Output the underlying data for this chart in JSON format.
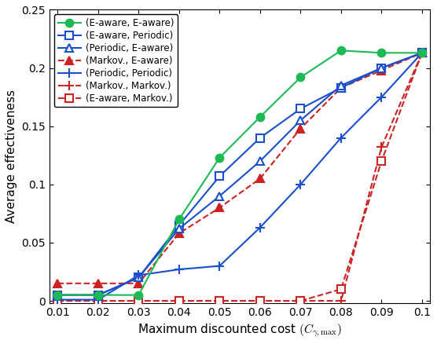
{
  "x": [
    0.01,
    0.02,
    0.03,
    0.04,
    0.05,
    0.06,
    0.07,
    0.08,
    0.09,
    0.1
  ],
  "series": [
    {
      "label": "(E-aware, E-aware)",
      "y": [
        0.005,
        0.005,
        0.005,
        0.07,
        0.123,
        0.158,
        0.192,
        0.215,
        0.213,
        0.213
      ],
      "color": "#1db954",
      "linestyle": "-",
      "marker": "o",
      "markerfacecolor": "#1db954",
      "markeredgecolor": "#1db954",
      "markersize": 7,
      "linewidth": 1.5,
      "zorder": 5
    },
    {
      "label": "(E-aware, Periodic)",
      "y": [
        0.005,
        0.005,
        0.02,
        0.065,
        0.107,
        0.14,
        0.165,
        0.183,
        0.2,
        0.213
      ],
      "color": "#1a4fcc",
      "linestyle": "-",
      "marker": "s",
      "markerfacecolor": "white",
      "markeredgecolor": "#1a4fcc",
      "markersize": 7,
      "linewidth": 1.5,
      "zorder": 4
    },
    {
      "label": "(Periodic, E-aware)",
      "y": [
        0.005,
        0.005,
        0.02,
        0.062,
        0.09,
        0.12,
        0.155,
        0.185,
        0.2,
        0.213
      ],
      "color": "#1a4fcc",
      "linestyle": "-",
      "marker": "^",
      "markerfacecolor": "white",
      "markeredgecolor": "#1a4fcc",
      "markersize": 7,
      "linewidth": 1.5,
      "zorder": 4
    },
    {
      "label": "(Markov., E-aware)",
      "y": [
        0.015,
        0.015,
        0.015,
        0.058,
        0.08,
        0.105,
        0.148,
        0.183,
        0.198,
        0.213
      ],
      "color": "#cc2222",
      "linestyle": "--",
      "marker": "^",
      "markerfacecolor": "#cc2222",
      "markeredgecolor": "#cc2222",
      "markersize": 7,
      "linewidth": 1.5,
      "zorder": 3
    },
    {
      "label": "(Periodic, Periodic)",
      "y": [
        0.001,
        0.001,
        0.022,
        0.027,
        0.03,
        0.063,
        0.1,
        0.14,
        0.175,
        0.213
      ],
      "color": "#1a4fcc",
      "linestyle": "-",
      "marker": "P",
      "markerfacecolor": "#1a4fcc",
      "markeredgecolor": "#1a4fcc",
      "markersize": 7,
      "linewidth": 1.5,
      "zorder": 4
    },
    {
      "label": "(Markov., Markov.)",
      "y": [
        0.0,
        0.0,
        0.0,
        0.0,
        0.0,
        0.0,
        0.0,
        0.0,
        0.132,
        0.213
      ],
      "color": "#cc2222",
      "linestyle": "--",
      "marker": "P",
      "markerfacecolor": "#cc2222",
      "markeredgecolor": "#cc2222",
      "markersize": 7,
      "linewidth": 1.5,
      "zorder": 3
    },
    {
      "label": "(E-aware, Markov.)",
      "y": [
        0.0,
        0.0,
        0.0,
        0.0,
        0.0,
        0.0,
        0.0,
        0.01,
        0.12,
        0.213
      ],
      "color": "#cc2222",
      "linestyle": "--",
      "marker": "s",
      "markerfacecolor": "white",
      "markeredgecolor": "#cc2222",
      "markersize": 7,
      "linewidth": 1.5,
      "zorder": 3
    }
  ],
  "xlim": [
    0.008,
    0.102
  ],
  "ylim": [
    -0.002,
    0.25
  ],
  "xlabel": "Maximum discounted cost $(C_{\\gamma,\\mathrm{max}})$",
  "ylabel": "Average effectiveness",
  "xticks": [
    0.01,
    0.02,
    0.03,
    0.04,
    0.05,
    0.06,
    0.07,
    0.08,
    0.09,
    0.1
  ],
  "xtick_labels": [
    "0.01",
    "0.02",
    "0.03",
    "0.04",
    "0.05",
    "0.06",
    "0.07",
    "0.08",
    "0.09",
    "0.1"
  ],
  "yticks": [
    0.0,
    0.05,
    0.1,
    0.15,
    0.2,
    0.25
  ],
  "ytick_labels": [
    "0",
    "0.05",
    "0.1",
    "0.15",
    "0.2",
    "0.25"
  ],
  "legend_loc": "upper left",
  "figsize": [
    5.56,
    4.38
  ],
  "dpi": 100
}
